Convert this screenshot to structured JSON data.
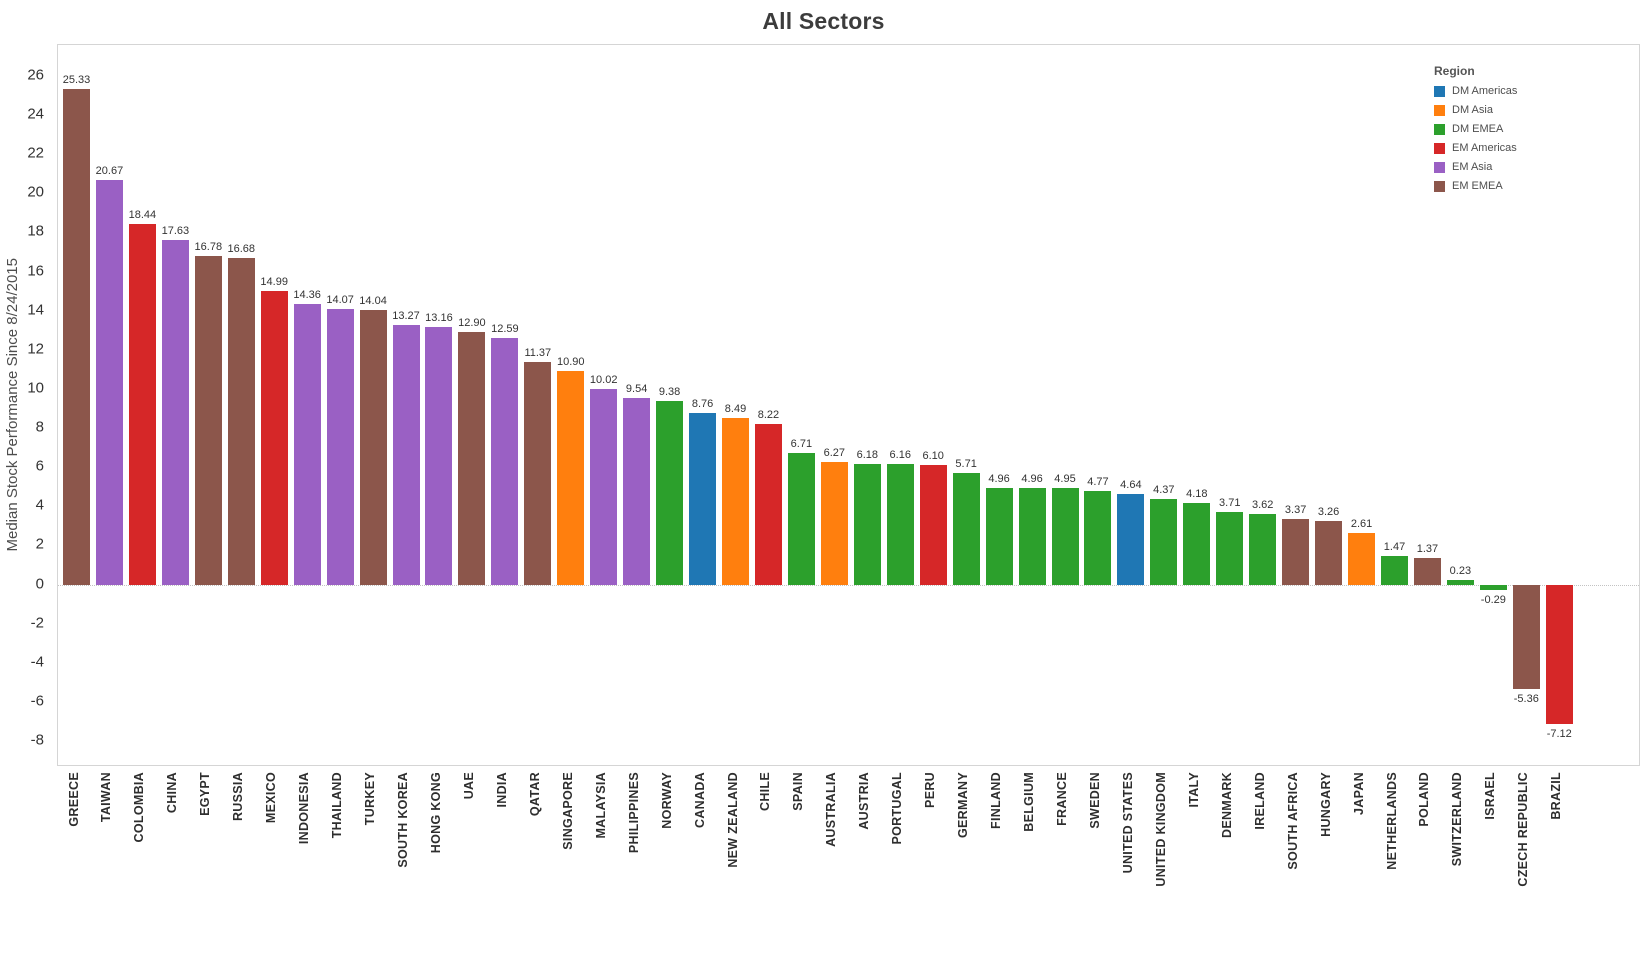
{
  "page": {
    "background": "#ffffff"
  },
  "chart_data": {
    "type": "bar",
    "title": "All Sectors",
    "ylabel": "Median Stock Performance Since 8/24/2015",
    "xlabel": "",
    "ylim": [
      -9,
      27.5
    ],
    "y_ticks": [
      26,
      24,
      22,
      20,
      18,
      16,
      14,
      12,
      10,
      8,
      6,
      4,
      2,
      0,
      -2,
      -4,
      -6,
      -8
    ],
    "grid": false,
    "value_labels": true,
    "legend_title": "Region",
    "legend_position": "top-right",
    "regions": [
      {
        "name": "DM Americas",
        "color": "#1f77b4"
      },
      {
        "name": "DM Asia",
        "color": "#ff7f0e"
      },
      {
        "name": "DM EMEA",
        "color": "#2ca02c"
      },
      {
        "name": "EM Americas",
        "color": "#d62728"
      },
      {
        "name": "EM Asia",
        "color": "#9a60c4"
      },
      {
        "name": "EM EMEA",
        "color": "#8c564b"
      }
    ],
    "bars": [
      {
        "country": "GREECE",
        "value": 25.33,
        "region": "EM EMEA"
      },
      {
        "country": "TAIWAN",
        "value": 20.67,
        "region": "EM Asia"
      },
      {
        "country": "COLOMBIA",
        "value": 18.44,
        "region": "EM Americas"
      },
      {
        "country": "CHINA",
        "value": 17.63,
        "region": "EM Asia"
      },
      {
        "country": "EGYPT",
        "value": 16.78,
        "region": "EM EMEA"
      },
      {
        "country": "RUSSIA",
        "value": 16.68,
        "region": "EM EMEA"
      },
      {
        "country": "MEXICO",
        "value": 14.99,
        "region": "EM Americas"
      },
      {
        "country": "INDONESIA",
        "value": 14.36,
        "region": "EM Asia"
      },
      {
        "country": "THAILAND",
        "value": 14.07,
        "region": "EM Asia"
      },
      {
        "country": "TURKEY",
        "value": 14.04,
        "region": "EM EMEA"
      },
      {
        "country": "SOUTH KOREA",
        "value": 13.27,
        "region": "EM Asia"
      },
      {
        "country": "HONG KONG",
        "value": 13.16,
        "region": "EM Asia"
      },
      {
        "country": "UAE",
        "value": 12.9,
        "region": "EM EMEA"
      },
      {
        "country": "INDIA",
        "value": 12.59,
        "region": "EM Asia"
      },
      {
        "country": "QATAR",
        "value": 11.37,
        "region": "EM EMEA"
      },
      {
        "country": "SINGAPORE",
        "value": 10.9,
        "region": "DM Asia"
      },
      {
        "country": "MALAYSIA",
        "value": 10.02,
        "region": "EM Asia"
      },
      {
        "country": "PHILIPPINES",
        "value": 9.54,
        "region": "EM Asia"
      },
      {
        "country": "NORWAY",
        "value": 9.38,
        "region": "DM EMEA"
      },
      {
        "country": "CANADA",
        "value": 8.76,
        "region": "DM Americas"
      },
      {
        "country": "NEW ZEALAND",
        "value": 8.49,
        "region": "DM Asia"
      },
      {
        "country": "CHILE",
        "value": 8.22,
        "region": "EM Americas"
      },
      {
        "country": "SPAIN",
        "value": 6.71,
        "region": "DM EMEA"
      },
      {
        "country": "AUSTRALIA",
        "value": 6.27,
        "region": "DM Asia"
      },
      {
        "country": "AUSTRIA",
        "value": 6.18,
        "region": "DM EMEA"
      },
      {
        "country": "PORTUGAL",
        "value": 6.16,
        "region": "DM EMEA"
      },
      {
        "country": "PERU",
        "value": 6.1,
        "region": "EM Americas"
      },
      {
        "country": "GERMANY",
        "value": 5.71,
        "region": "DM EMEA"
      },
      {
        "country": "FINLAND",
        "value": 4.96,
        "region": "DM EMEA"
      },
      {
        "country": "BELGIUM",
        "value": 4.96,
        "region": "DM EMEA"
      },
      {
        "country": "FRANCE",
        "value": 4.95,
        "region": "DM EMEA"
      },
      {
        "country": "SWEDEN",
        "value": 4.77,
        "region": "DM EMEA"
      },
      {
        "country": "UNITED STATES",
        "value": 4.64,
        "region": "DM Americas"
      },
      {
        "country": "UNITED KINGDOM",
        "value": 4.37,
        "region": "DM EMEA"
      },
      {
        "country": "ITALY",
        "value": 4.18,
        "region": "DM EMEA"
      },
      {
        "country": "DENMARK",
        "value": 3.71,
        "region": "DM EMEA"
      },
      {
        "country": "IRELAND",
        "value": 3.62,
        "region": "DM EMEA"
      },
      {
        "country": "SOUTH AFRICA",
        "value": 3.37,
        "region": "EM EMEA"
      },
      {
        "country": "HUNGARY",
        "value": 3.26,
        "region": "EM EMEA"
      },
      {
        "country": "JAPAN",
        "value": 2.61,
        "region": "DM Asia"
      },
      {
        "country": "NETHERLANDS",
        "value": 1.47,
        "region": "DM EMEA"
      },
      {
        "country": "POLAND",
        "value": 1.37,
        "region": "EM EMEA"
      },
      {
        "country": "SWITZERLAND",
        "value": 0.23,
        "region": "DM EMEA"
      },
      {
        "country": "ISRAEL",
        "value": -0.29,
        "region": "DM EMEA"
      },
      {
        "country": "CZECH REPUBLIC",
        "value": -5.36,
        "region": "EM EMEA"
      },
      {
        "country": "BRAZIL",
        "value": -7.12,
        "region": "EM Americas"
      }
    ]
  }
}
